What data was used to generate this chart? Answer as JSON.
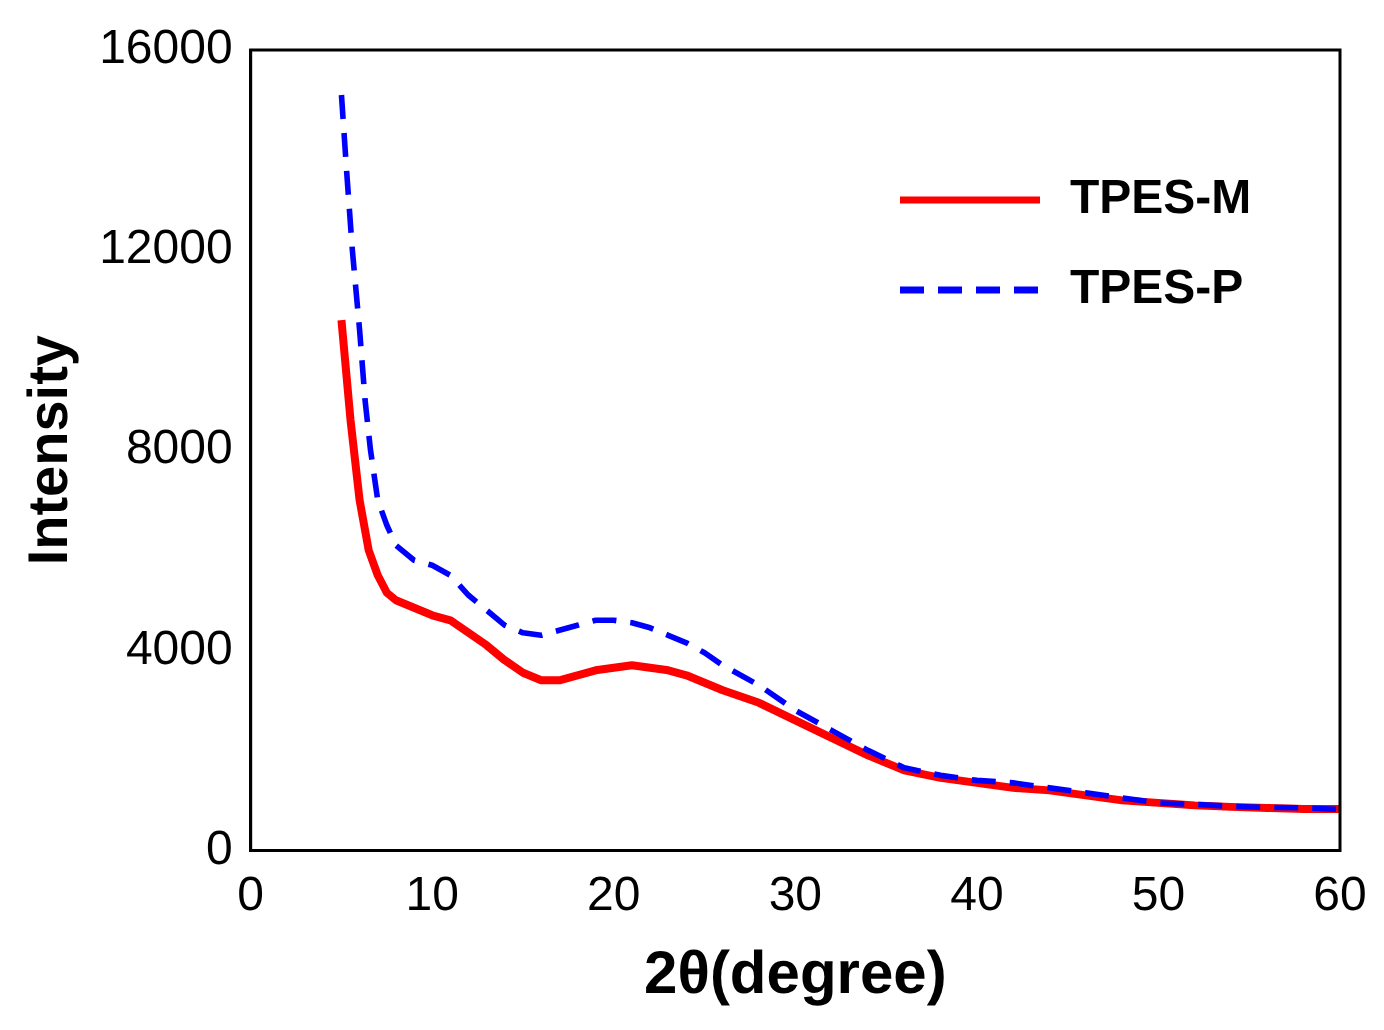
{
  "chart_data": {
    "type": "line",
    "xlabel": "2θ(degree)",
    "ylabel": "Intensity",
    "xlim": [
      0,
      60
    ],
    "xticks": [
      0,
      10,
      20,
      30,
      40,
      50,
      60
    ],
    "ylim": [
      0,
      16000
    ],
    "yticks": [
      0,
      4000,
      8000,
      12000,
      16000
    ],
    "grid": false,
    "legend": "top right",
    "marker": "none",
    "series": [
      {
        "name": "TPES-M",
        "color": "#ff0000",
        "line_style": "solid",
        "x": [
          5,
          5.5,
          6,
          6.5,
          7,
          7.5,
          8,
          9,
          10,
          11,
          12,
          13,
          14,
          15,
          16,
          17,
          18,
          19,
          20,
          21,
          22,
          23,
          24,
          25,
          26,
          28,
          30,
          32,
          34,
          36,
          38,
          40,
          42,
          44,
          46,
          48,
          50,
          52,
          54,
          56,
          58,
          60
        ],
        "values": [
          10600,
          8600,
          7000,
          6000,
          5500,
          5150,
          5000,
          4850,
          4700,
          4600,
          4350,
          4100,
          3800,
          3550,
          3400,
          3400,
          3500,
          3600,
          3650,
          3700,
          3650,
          3600,
          3500,
          3350,
          3200,
          2950,
          2600,
          2250,
          1900,
          1600,
          1450,
          1350,
          1250,
          1200,
          1100,
          1000,
          950,
          900,
          870,
          850,
          830,
          830
        ]
      },
      {
        "name": "TPES-P",
        "color": "#0000ff",
        "line_style": "dashed",
        "x": [
          5,
          5.3,
          5.6,
          6,
          6.3,
          6.6,
          7,
          7.5,
          8,
          9,
          10,
          11,
          12,
          13,
          14,
          15,
          16,
          17,
          18,
          19,
          20,
          21,
          22,
          23,
          24,
          25,
          26,
          28,
          30,
          32,
          34,
          36,
          38,
          40,
          42,
          44,
          46,
          48,
          50,
          52,
          54,
          56,
          58,
          60
        ],
        "values": [
          15100,
          13500,
          12000,
          10400,
          9000,
          8000,
          7000,
          6500,
          6100,
          5800,
          5700,
          5500,
          5100,
          4800,
          4500,
          4350,
          4300,
          4400,
          4500,
          4600,
          4600,
          4550,
          4450,
          4300,
          4150,
          3950,
          3700,
          3300,
          2800,
          2400,
          2000,
          1650,
          1500,
          1400,
          1350,
          1250,
          1150,
          1050,
          950,
          920,
          880,
          860,
          850,
          820
        ]
      }
    ]
  }
}
